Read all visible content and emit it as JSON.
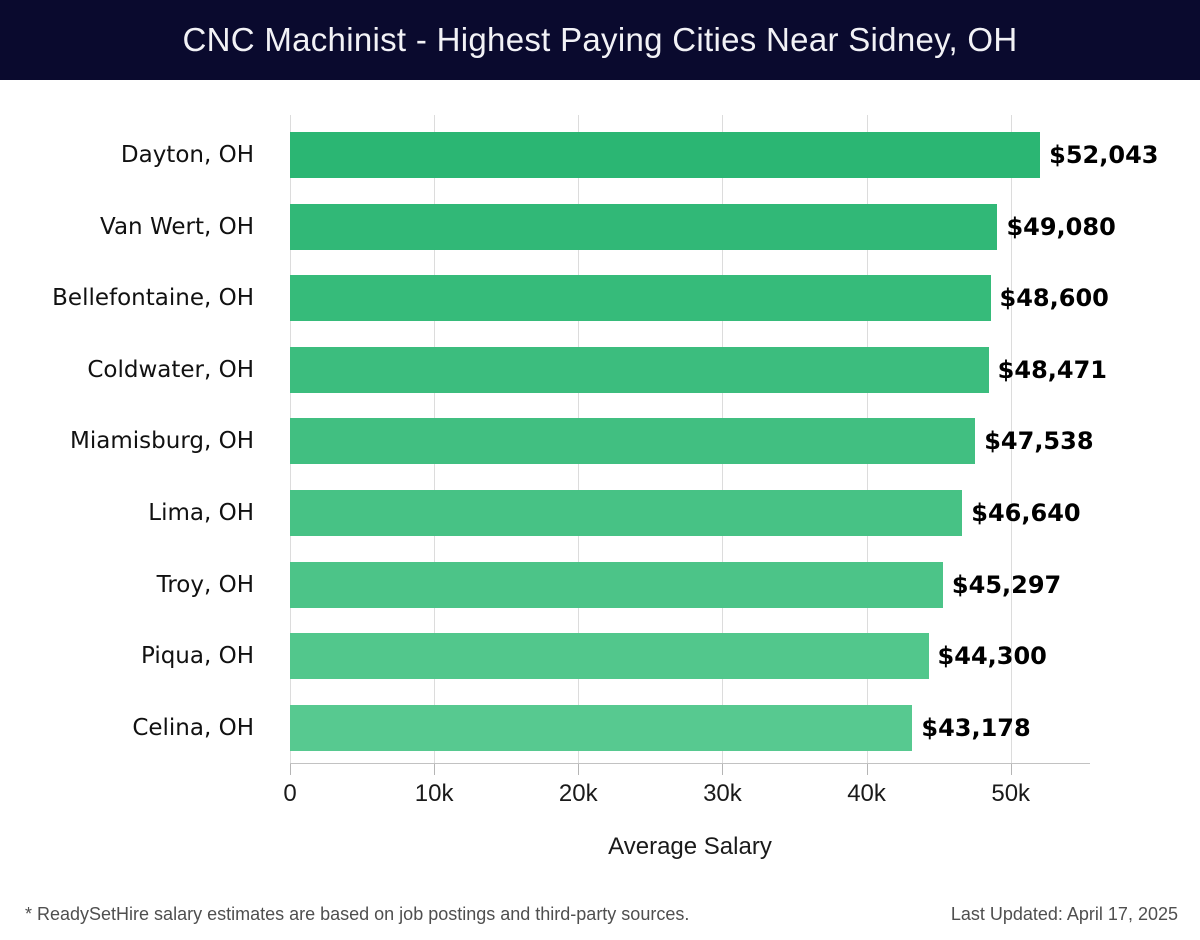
{
  "header": {
    "title": "CNC Machinist - Highest Paying Cities Near Sidney, OH",
    "bg_color": "#0a0a2e",
    "text_color": "#f2f2f6"
  },
  "chart_data": {
    "type": "bar",
    "orientation": "horizontal",
    "title": "CNC Machinist - Highest Paying Cities Near Sidney, OH",
    "categories": [
      "Dayton, OH",
      "Van Wert, OH",
      "Bellefontaine, OH",
      "Coldwater, OH",
      "Miamisburg, OH",
      "Lima, OH",
      "Troy, OH",
      "Piqua, OH",
      "Celina, OH"
    ],
    "values": [
      52043,
      49080,
      48600,
      48471,
      47538,
      46640,
      45297,
      44300,
      43178
    ],
    "value_labels": [
      "$52,043",
      "$49,080",
      "$48,600",
      "$48,471",
      "$47,538",
      "$46,640",
      "$45,297",
      "$44,300",
      "$43,178"
    ],
    "bar_colors": [
      "#2bb673",
      "#31b877",
      "#36bb7a",
      "#3cbd7e",
      "#41bf81",
      "#47c285",
      "#4cc488",
      "#52c78c",
      "#57c990"
    ],
    "xlabel": "Average Salary",
    "ylabel": "",
    "xlim": [
      0,
      55500
    ],
    "x_ticks": [
      0,
      10000,
      20000,
      30000,
      40000,
      50000
    ],
    "x_tick_labels": [
      "0",
      "10k",
      "20k",
      "30k",
      "40k",
      "50k"
    ],
    "grid": "vertical",
    "gridline_color": "#dcdcdc",
    "legend": "none"
  },
  "footer": {
    "note": "* ReadySetHire salary estimates are based on job postings and third-party sources.",
    "last_updated": "Last Updated: April 17, 2025"
  }
}
